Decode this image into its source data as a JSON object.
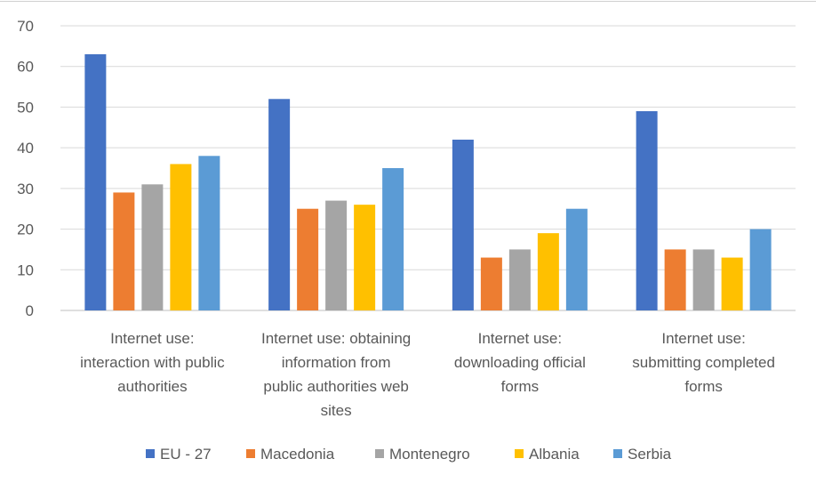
{
  "chart_data": {
    "type": "bar",
    "title": "",
    "xlabel": "",
    "ylabel": "",
    "ylim": [
      0,
      70
    ],
    "yticks": [
      0,
      10,
      20,
      30,
      40,
      50,
      60,
      70
    ],
    "grid": true,
    "legend_position": "bottom",
    "categories": [
      [
        "Internet use:",
        "interaction with public",
        "authorities"
      ],
      [
        "Internet use: obtaining",
        "information from",
        "public authorities web",
        "sites"
      ],
      [
        "Internet use:",
        "downloading official",
        "forms"
      ],
      [
        "Internet use:",
        "submitting completed",
        "forms"
      ]
    ],
    "series": [
      {
        "name": "EU - 27",
        "color": "#4472C4",
        "values": [
          63,
          52,
          42,
          49
        ]
      },
      {
        "name": "Macedonia",
        "color": "#ED7D31",
        "values": [
          29,
          25,
          13,
          15
        ]
      },
      {
        "name": "Montenegro",
        "color": "#A5A5A5",
        "values": [
          31,
          27,
          15,
          15
        ]
      },
      {
        "name": "Albania",
        "color": "#FFC000",
        "values": [
          36,
          26,
          19,
          13
        ]
      },
      {
        "name": "Serbia",
        "color": "#5B9BD5",
        "values": [
          38,
          35,
          25,
          20
        ]
      }
    ]
  }
}
